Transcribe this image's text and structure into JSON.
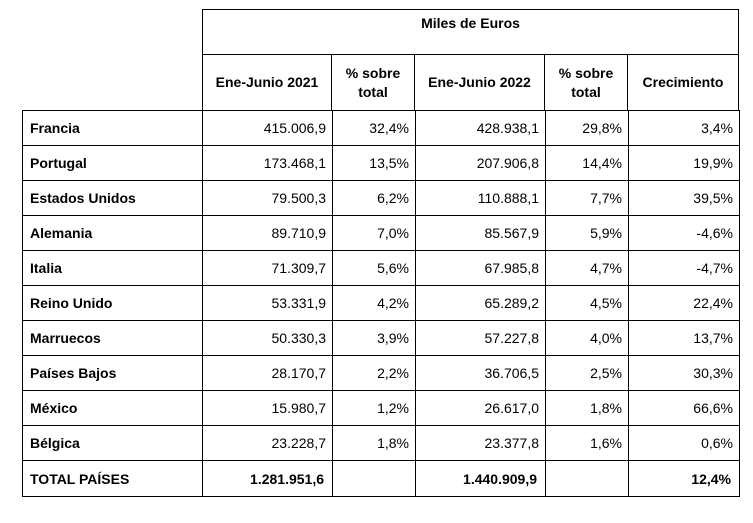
{
  "table": {
    "group_header": "Miles de Euros",
    "columns": [
      "Ene-Junio 2021",
      "% sobre total",
      "Ene-Junio 2022",
      "% sobre total",
      "Crecimiento"
    ],
    "rows": [
      {
        "country": "Francia",
        "y2021": "415.006,9",
        "pct2021": "32,4%",
        "y2022": "428.938,1",
        "pct2022": "29,8%",
        "growth": "3,4%"
      },
      {
        "country": "Portugal",
        "y2021": "173.468,1",
        "pct2021": "13,5%",
        "y2022": "207.906,8",
        "pct2022": "14,4%",
        "growth": "19,9%"
      },
      {
        "country": "Estados Unidos",
        "y2021": "79.500,3",
        "pct2021": "6,2%",
        "y2022": "110.888,1",
        "pct2022": "7,7%",
        "growth": "39,5%"
      },
      {
        "country": "Alemania",
        "y2021": "89.710,9",
        "pct2021": "7,0%",
        "y2022": "85.567,9",
        "pct2022": "5,9%",
        "growth": "-4,6%"
      },
      {
        "country": "Italia",
        "y2021": "71.309,7",
        "pct2021": "5,6%",
        "y2022": "67.985,8",
        "pct2022": "4,7%",
        "growth": "-4,7%"
      },
      {
        "country": "Reino Unido",
        "y2021": "53.331,9",
        "pct2021": "4,2%",
        "y2022": "65.289,2",
        "pct2022": "4,5%",
        "growth": "22,4%"
      },
      {
        "country": "Marruecos",
        "y2021": "50.330,3",
        "pct2021": "3,9%",
        "y2022": "57.227,8",
        "pct2022": "4,0%",
        "growth": "13,7%"
      },
      {
        "country": "Países Bajos",
        "y2021": "28.170,7",
        "pct2021": "2,2%",
        "y2022": "36.706,5",
        "pct2022": "2,5%",
        "growth": "30,3%"
      },
      {
        "country": "México",
        "y2021": "15.980,7",
        "pct2021": "1,2%",
        "y2022": "26.617,0",
        "pct2022": "1,8%",
        "growth": "66,6%"
      },
      {
        "country": "Bélgica",
        "y2021": "23.228,7",
        "pct2021": "1,8%",
        "y2022": "23.377,8",
        "pct2022": "1,6%",
        "growth": "0,6%"
      }
    ],
    "total": {
      "label": "TOTAL PAÍSES",
      "y2021": "1.281.951,6",
      "y2022": "1.440.909,9",
      "growth": "12,4%"
    }
  }
}
